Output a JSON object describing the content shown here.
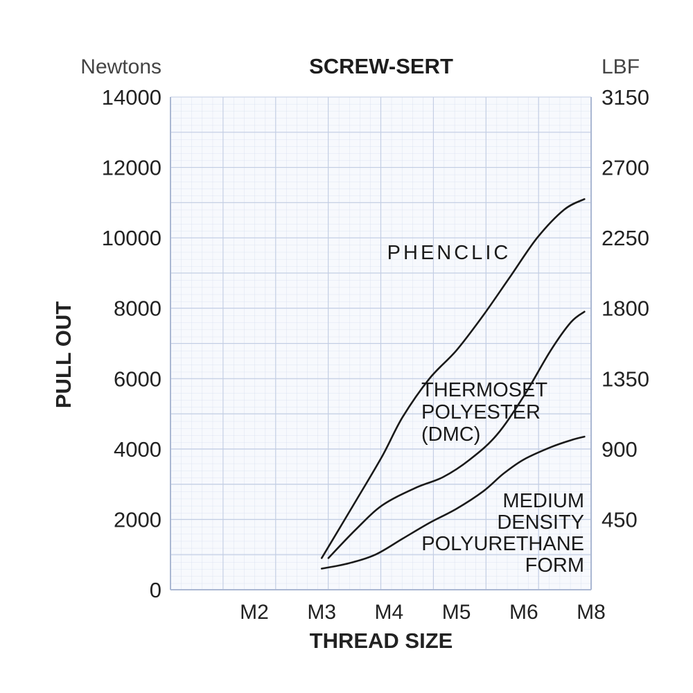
{
  "chart_data": {
    "type": "line",
    "title": "SCREW-SERT",
    "xlabel": "THREAD SIZE",
    "ylabel": "PULL OUT",
    "y_left_unit": "Newtons",
    "y_right_unit": "LBF",
    "categories": [
      "M2",
      "M3",
      "M4",
      "M5",
      "M6",
      "M8"
    ],
    "ylim": [
      0,
      14000
    ],
    "y_left_ticks": [
      "0",
      "2000",
      "4000",
      "6000",
      "8000",
      "10000",
      "12000",
      "14000"
    ],
    "y_right_ticks": [
      "450",
      "900",
      "1350",
      "1800",
      "2250",
      "2700",
      "3150"
    ],
    "grid": true,
    "series": [
      {
        "name": "PHENCLIC",
        "label_lines": [
          "PHENCLIC"
        ],
        "points": [
          [
            1.0,
            900
          ],
          [
            1.5,
            2500
          ],
          [
            1.9,
            3800
          ],
          [
            2.2,
            4900
          ],
          [
            2.6,
            6000
          ],
          [
            3.0,
            6800
          ],
          [
            3.4,
            7800
          ],
          [
            3.8,
            8900
          ],
          [
            4.2,
            10000
          ],
          [
            4.6,
            10800
          ],
          [
            4.9,
            11100
          ]
        ]
      },
      {
        "name": "THERMOSET POLYESTER (DMC)",
        "label_lines": [
          "THERMOSET",
          "POLYESTER",
          "(DMC)"
        ],
        "points": [
          [
            1.1,
            900
          ],
          [
            1.5,
            1700
          ],
          [
            1.9,
            2400
          ],
          [
            2.4,
            2900
          ],
          [
            2.8,
            3200
          ],
          [
            3.2,
            3700
          ],
          [
            3.6,
            4400
          ],
          [
            4.0,
            5500
          ],
          [
            4.4,
            6800
          ],
          [
            4.7,
            7600
          ],
          [
            4.9,
            7900
          ]
        ]
      },
      {
        "name": "MEDIUM DENSITY POLYURETHANE FORM",
        "label_lines": [
          "MEDIUM",
          "DENSITY",
          "POLYURETHANE",
          "FORM"
        ],
        "points": [
          [
            1.0,
            600
          ],
          [
            1.4,
            750
          ],
          [
            1.8,
            1000
          ],
          [
            2.2,
            1450
          ],
          [
            2.6,
            1900
          ],
          [
            3.0,
            2300
          ],
          [
            3.4,
            2800
          ],
          [
            3.7,
            3300
          ],
          [
            4.0,
            3700
          ],
          [
            4.4,
            4050
          ],
          [
            4.7,
            4250
          ],
          [
            4.9,
            4350
          ]
        ]
      }
    ]
  }
}
